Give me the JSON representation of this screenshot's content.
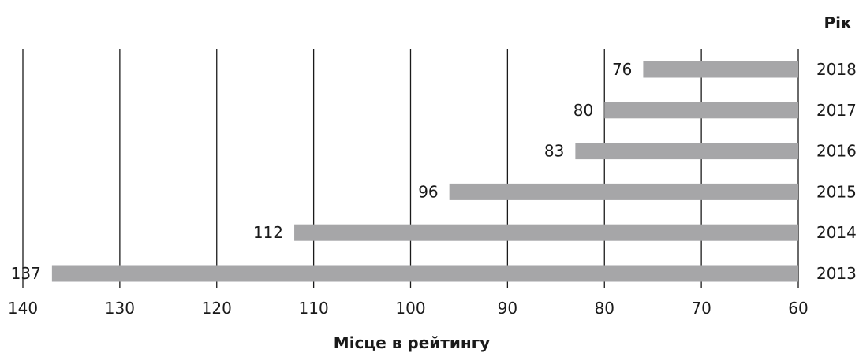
{
  "chart_data": {
    "type": "bar",
    "orientation": "horizontal",
    "categories": [
      "2018",
      "2017",
      "2016",
      "2015",
      "2014",
      "2013"
    ],
    "values": [
      76,
      80,
      83,
      96,
      112,
      137
    ],
    "data_labels": [
      "76",
      "80",
      "83",
      "96",
      "112",
      "137"
    ],
    "title": "",
    "xlabel": "Місце в рейтингу",
    "ylabel": "Рік",
    "xlim": [
      140,
      60
    ],
    "x_ticks": [
      140,
      130,
      120,
      110,
      100,
      90,
      80,
      70,
      60
    ],
    "x_tick_labels": [
      "140",
      "130",
      "120",
      "110",
      "100",
      "90",
      "80",
      "70",
      "60"
    ],
    "x_axis_reversed": true,
    "y_axis_side": "right",
    "grid": "vertical",
    "legend": "none",
    "bar_color": "#a6a6a8",
    "grid_color": "#1a1a1a"
  }
}
